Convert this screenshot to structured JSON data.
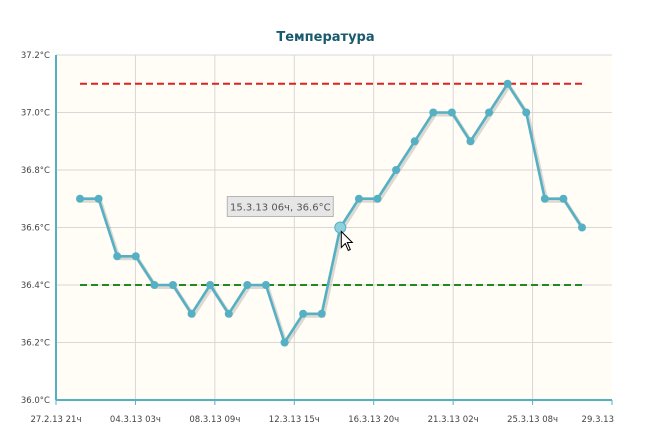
{
  "chart_data": {
    "type": "line",
    "title": "Температура",
    "xlabel": "",
    "ylabel": "",
    "grid": true,
    "ylim": [
      36.0,
      37.2
    ],
    "y_ticks": [
      36.0,
      36.2,
      36.4,
      36.6,
      36.8,
      37.0,
      37.2
    ],
    "y_tick_labels": [
      "36.0°C",
      "36.2°C",
      "36.4°C",
      "36.6°C",
      "36.8°C",
      "37.0°C",
      "37.2°C"
    ],
    "x_tick_labels": [
      "27.2.13 21ч",
      "04.3.13 03ч",
      "08.3.13 09ч",
      "12.3.13 15ч",
      "16.3.13 20ч",
      "21.3.13 02ч",
      "25.3.13 08ч",
      "29.3.13"
    ],
    "series": [
      {
        "color": "#55b0c4",
        "values": [
          36.7,
          36.7,
          36.5,
          36.5,
          36.4,
          36.4,
          36.3,
          36.4,
          36.3,
          36.4,
          36.4,
          36.2,
          36.3,
          36.3,
          36.6,
          36.7,
          36.7,
          36.8,
          36.9,
          37.0,
          37.0,
          36.9,
          37.0,
          37.1,
          37.0,
          36.7,
          36.7,
          36.6
        ]
      }
    ],
    "reference_lines": [
      {
        "value": 37.1,
        "color": "#dd2222",
        "style": "dashed"
      },
      {
        "value": 36.4,
        "color": "#228822",
        "style": "dashed"
      }
    ],
    "tooltip": {
      "text": "15.3.13 06ч, 36.6°C",
      "point_index": 14
    },
    "colors": {
      "plot_background": "#fffdf5",
      "grid": "#d8d8d8",
      "axis": "#55b0c4",
      "title": "#1a5a6e"
    }
  }
}
